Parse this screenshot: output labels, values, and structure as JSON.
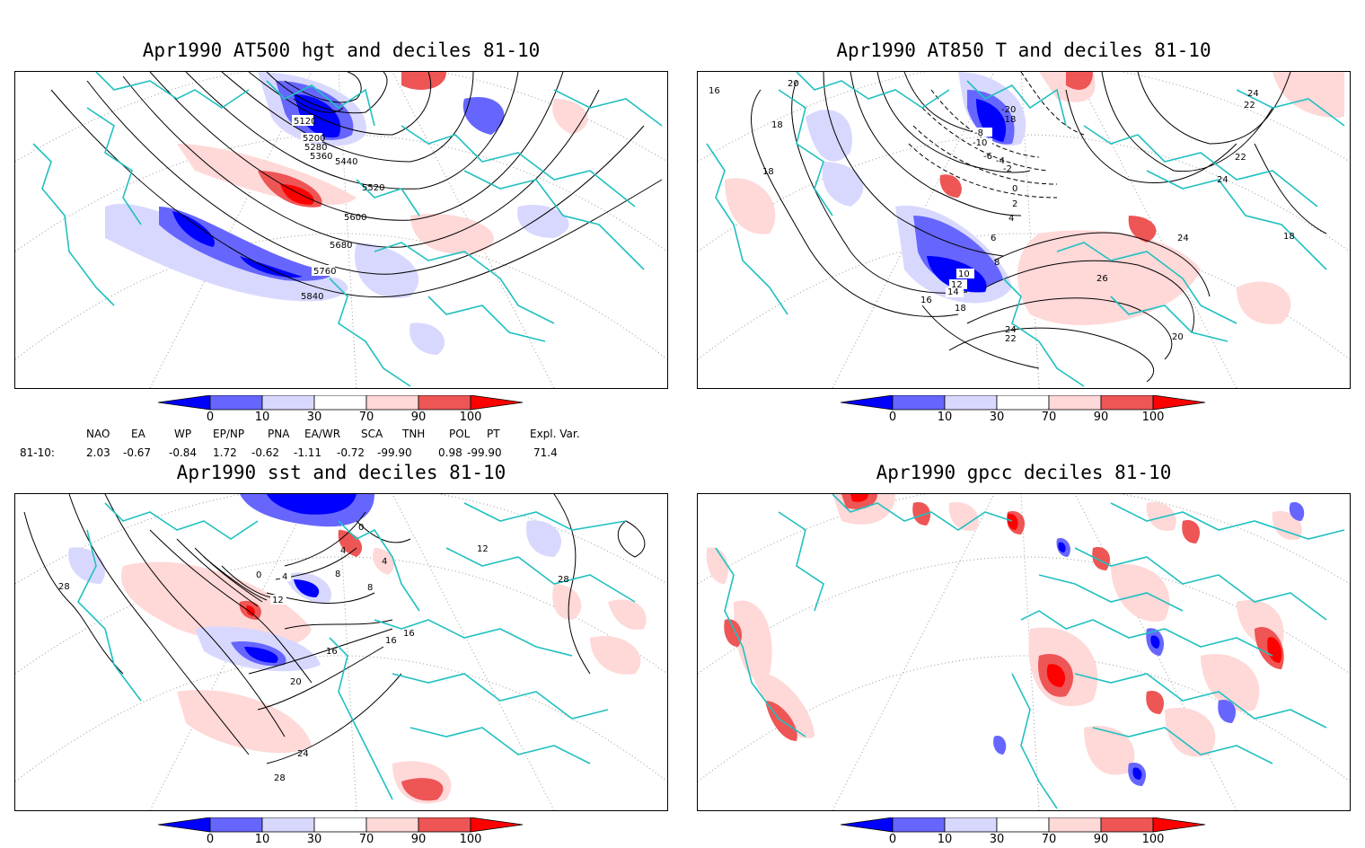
{
  "panels": [
    {
      "title": "Apr1990 AT500 hgt and deciles 81-10",
      "contour_labels": [
        "5120",
        "5200",
        "5280",
        "5360",
        "5440",
        "5520",
        "5600",
        "5680",
        "5760",
        "5840"
      ]
    },
    {
      "title": "Apr1990 AT850 T and deciles 81-10",
      "contour_labels": [
        "16",
        "20",
        "18",
        "18",
        "-20",
        "-18",
        "-8",
        "-10",
        "-6",
        "-4",
        "-2",
        "0",
        "2",
        "4",
        "6",
        "8",
        "10",
        "12",
        "14",
        "16",
        "18",
        "22",
        "24",
        "26",
        "24",
        "24",
        "22",
        "22",
        "24",
        "18",
        "20"
      ]
    },
    {
      "title": "Apr1990 sst and deciles 81-10",
      "contour_labels": [
        "28",
        "0",
        "0",
        "4",
        "4",
        "8",
        "8",
        "12",
        "16",
        "16",
        "16",
        "20",
        "24",
        "28",
        "12",
        "28",
        "4"
      ]
    },
    {
      "title": "Apr1990 gpcc deciles 81-10",
      "contour_labels": []
    }
  ],
  "colorbar": {
    "ticks": [
      "0",
      "10",
      "30",
      "70",
      "90",
      "100"
    ],
    "colors": [
      "#0000ff",
      "#6666ff",
      "#d8d8ff",
      "#ffffff",
      "#ffd8d8",
      "#ee5555",
      "#ff0000"
    ]
  },
  "indices": {
    "headers": [
      "NAO",
      "EA",
      "WP",
      "EP/NP",
      "PNA",
      "EA/WR",
      "SCA",
      "TNH",
      "POL",
      "PT",
      "Expl. Var."
    ],
    "row_label": "81-10:",
    "values": [
      "2.03",
      "-0.67",
      "-0.84",
      "1.72",
      "-0.62",
      "-1.11",
      "-0.72",
      "-99.90",
      "0.98",
      "-99.90",
      "71.4"
    ]
  },
  "colors": {
    "coastline": "#20c0c0",
    "contour": "#000000",
    "positive": "#ff0000",
    "negative": "#0000ff"
  }
}
